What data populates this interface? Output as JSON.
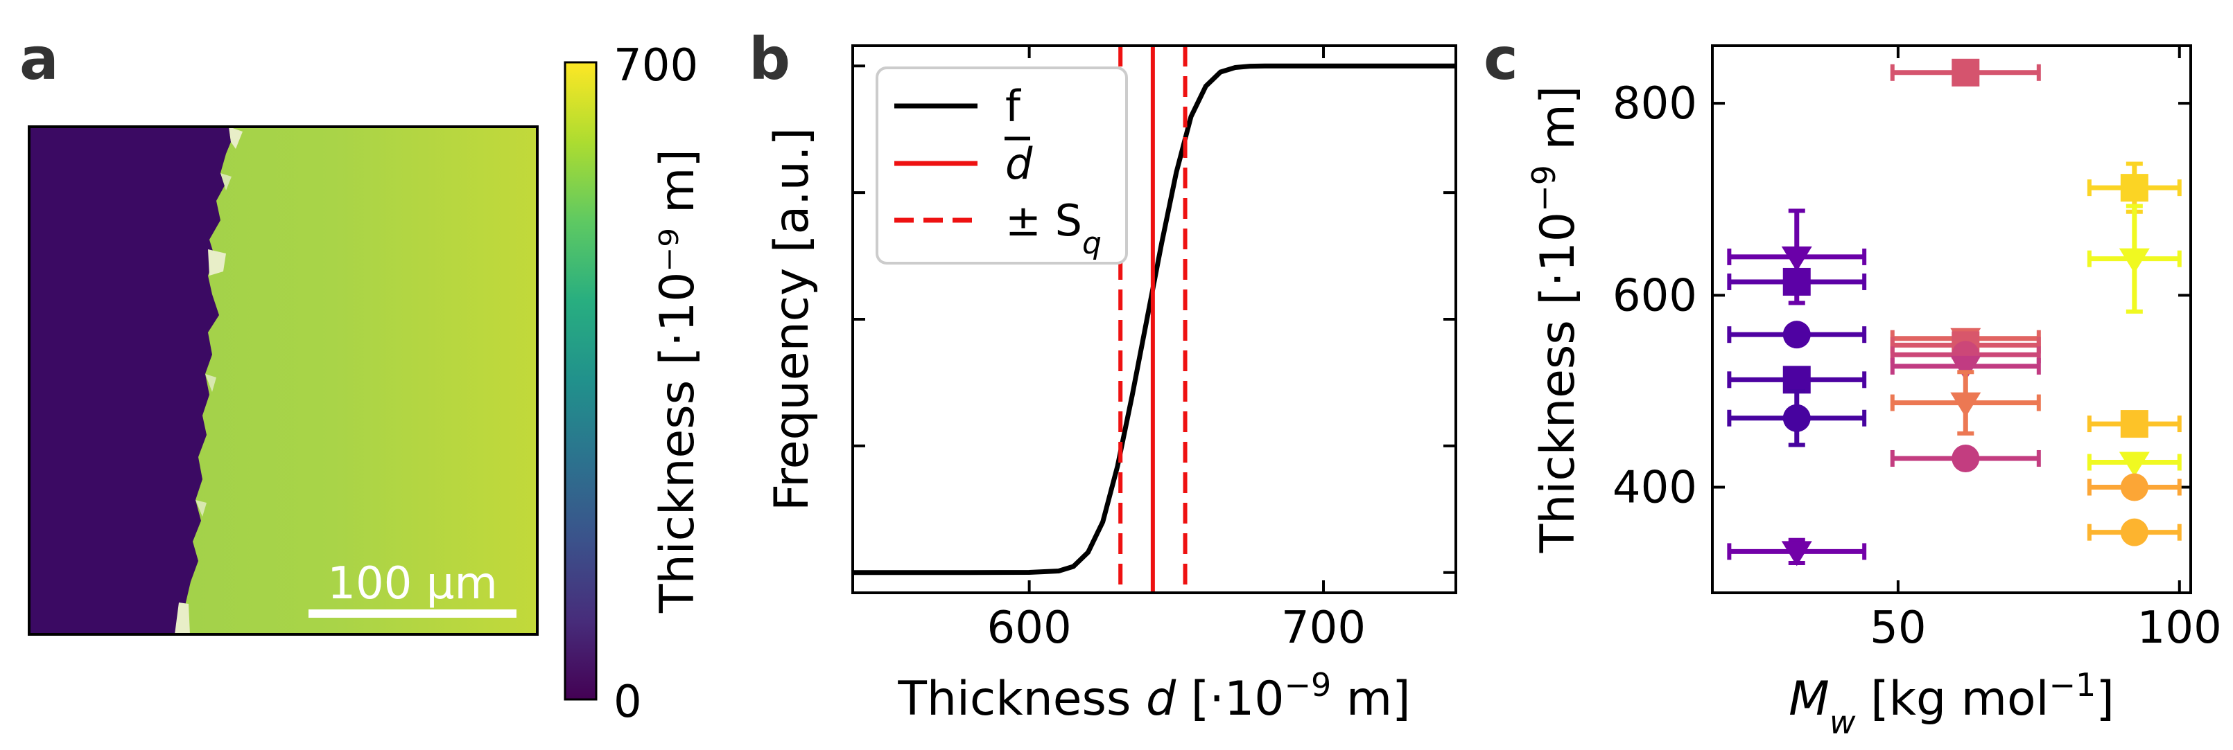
{
  "colors": {
    "substrate": "#3b0a63",
    "film": "#a8d24a",
    "black": "#000000",
    "red": "#ee1111",
    "panel_letter": "#333333",
    "colorbar": [
      "#440154",
      "#472d7b",
      "#3b528b",
      "#2c728e",
      "#21918c",
      "#28ae80",
      "#5ec962",
      "#addc30",
      "#fde725"
    ]
  },
  "chart_data": [
    {
      "panel": "a",
      "type": "heatmap",
      "title": "",
      "scalebar_label": "100 μm",
      "colorbar": {
        "label": "Thickness [·10⁻⁹ m]",
        "min_label": "0",
        "max_label": "700",
        "range": [
          0,
          700
        ],
        "colormap": "viridis"
      }
    },
    {
      "panel": "b",
      "type": "line",
      "xlabel": "Thickness d [·10⁻⁹ m]",
      "xlabel_italic": "d",
      "ylabel": "Frequency [a.u.]",
      "xlim": [
        540,
        745
      ],
      "ylim": [
        -0.04,
        1.04
      ],
      "xticks": [
        600,
        700
      ],
      "xtick_labels": [
        "600",
        "700"
      ],
      "yticks": [
        0.0,
        0.25,
        0.5,
        0.75,
        1.0
      ],
      "ytick_labels": [],
      "series": [
        {
          "name": "f",
          "style": "solid",
          "color": "#000000",
          "x": [
            540,
            560,
            580,
            600,
            610,
            615,
            620,
            625,
            630,
            635,
            640,
            645,
            650,
            655,
            660,
            665,
            670,
            675,
            680,
            690,
            700,
            720,
            745
          ],
          "y": [
            0,
            0,
            0,
            0.0003,
            0.003,
            0.012,
            0.04,
            0.1,
            0.21,
            0.35,
            0.5,
            0.65,
            0.79,
            0.9,
            0.96,
            0.988,
            0.997,
            0.9995,
            1.0,
            1.0,
            1.0,
            1.0,
            1.0
          ]
        }
      ],
      "vlines": [
        {
          "name": "d_mean",
          "x": 642,
          "style": "solid",
          "color": "#ee1111"
        },
        {
          "name": "minus_sq",
          "x": 631,
          "style": "dashed",
          "color": "#ee1111"
        },
        {
          "name": "plus_sq",
          "x": 653,
          "style": "dashed",
          "color": "#ee1111"
        }
      ],
      "legend": {
        "position": "top-left",
        "entries": [
          {
            "label": "f",
            "style": "solid",
            "color": "#000000"
          },
          {
            "label": "d",
            "overline": true,
            "italic": true,
            "style": "solid",
            "color": "#ee1111"
          },
          {
            "label": "± S",
            "subscript": "q",
            "style": "dashed",
            "color": "#ee1111"
          }
        ]
      }
    },
    {
      "panel": "c",
      "type": "scatter",
      "xlabel": "M_w [kg mol⁻¹]",
      "xlabel_parts": {
        "base": "M",
        "sub": "w",
        "rest": " [kg mol",
        "sup": "−1",
        "close": "]"
      },
      "ylabel": "Thickness [·10⁻⁹ m]",
      "xlim": [
        17,
        102
      ],
      "ylim": [
        290,
        860
      ],
      "xticks": [
        50,
        100
      ],
      "xtick_labels": [
        "50",
        "100"
      ],
      "yticks": [
        400,
        600,
        800
      ],
      "ytick_labels": [
        "400",
        "600",
        "800"
      ],
      "points": [
        {
          "x": 32,
          "y": 640,
          "xerr": 12,
          "yerr": 48,
          "marker": "triangle-down",
          "color": "#6a00a8"
        },
        {
          "x": 32,
          "y": 614,
          "xerr": 12,
          "yerr": 0,
          "marker": "square",
          "color": "#5c01a6"
        },
        {
          "x": 32,
          "y": 559,
          "xerr": 12,
          "yerr": 0,
          "marker": "circle",
          "color": "#4f02a2"
        },
        {
          "x": 32,
          "y": 512,
          "xerr": 12,
          "yerr": 0,
          "marker": "square",
          "color": "#4c02a1"
        },
        {
          "x": 32,
          "y": 472,
          "xerr": 12,
          "yerr": 28,
          "marker": "circle",
          "color": "#47039f"
        },
        {
          "x": 32,
          "y": 333,
          "xerr": 12,
          "yerr": 12,
          "marker": "triangle-down",
          "color": "#7201a8"
        },
        {
          "x": 62,
          "y": 832,
          "xerr": 13,
          "yerr": 0,
          "marker": "square",
          "color": "#d5546e"
        },
        {
          "x": 62,
          "y": 555,
          "xerr": 13,
          "yerr": 0,
          "marker": "triangle-down",
          "color": "#e16462"
        },
        {
          "x": 62,
          "y": 548,
          "xerr": 13,
          "yerr": 0,
          "marker": "square",
          "color": "#d8576b"
        },
        {
          "x": 62,
          "y": 538,
          "xerr": 13,
          "yerr": 0,
          "marker": "circle",
          "color": "#cc4778"
        },
        {
          "x": 62,
          "y": 526,
          "xerr": 13,
          "yerr": 0,
          "marker": "triangle-down",
          "color": "#c13b82"
        },
        {
          "x": 62,
          "y": 488,
          "xerr": 13,
          "yerr": 32,
          "marker": "triangle-down",
          "color": "#ec7853"
        },
        {
          "x": 62,
          "y": 430,
          "xerr": 13,
          "yerr": 0,
          "marker": "circle",
          "color": "#c33d80"
        },
        {
          "x": 92,
          "y": 712,
          "xerr": 8,
          "yerr": 25,
          "marker": "square",
          "color": "#fbd424"
        },
        {
          "x": 92,
          "y": 638,
          "xerr": 8,
          "yerr": 55,
          "marker": "triangle-down",
          "color": "#f0f921"
        },
        {
          "x": 92,
          "y": 466,
          "xerr": 8,
          "yerr": 0,
          "marker": "square",
          "color": "#fdc328"
        },
        {
          "x": 92,
          "y": 426,
          "xerr": 8,
          "yerr": 0,
          "marker": "triangle-down",
          "color": "#f0f921"
        },
        {
          "x": 92,
          "y": 400,
          "xerr": 8,
          "yerr": 0,
          "marker": "circle",
          "color": "#fca636"
        },
        {
          "x": 92,
          "y": 353,
          "xerr": 8,
          "yerr": 0,
          "marker": "circle",
          "color": "#fdb42f"
        }
      ]
    }
  ],
  "labels": {
    "panel_a": "a",
    "panel_b": "b",
    "panel_c": "c"
  }
}
